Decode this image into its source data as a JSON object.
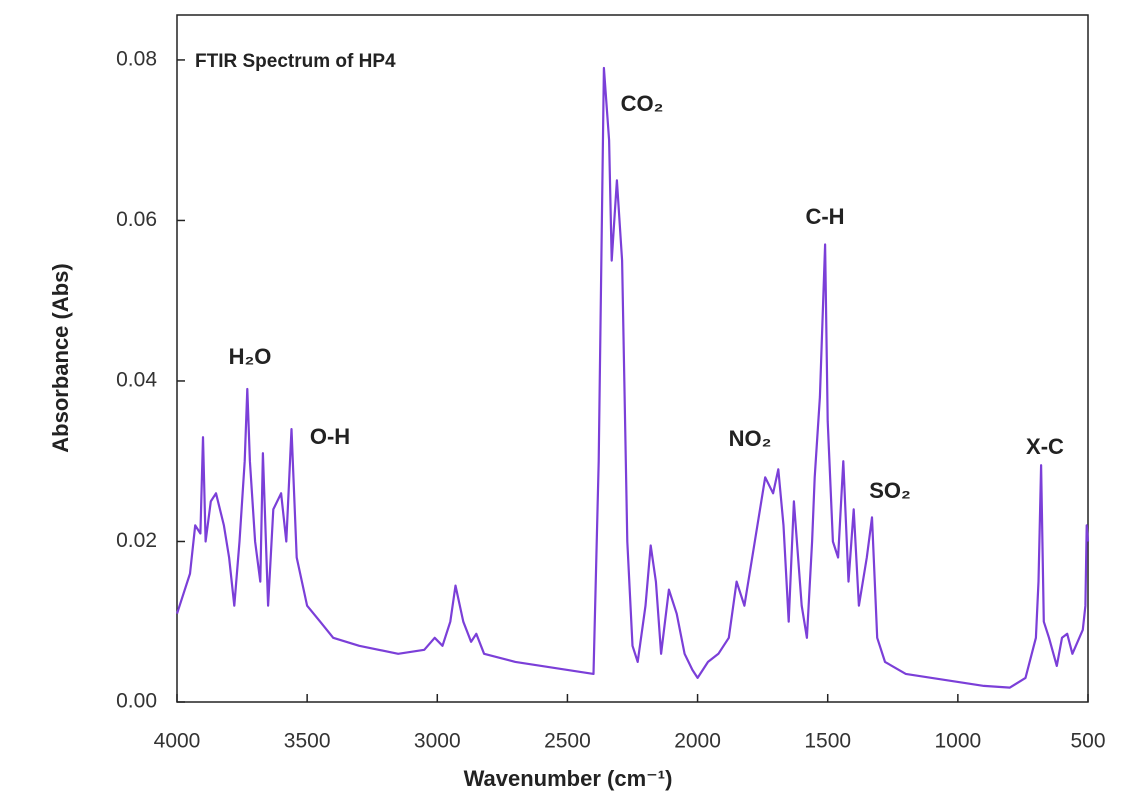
{
  "chart_data": {
    "type": "line",
    "title": "FTIR Spectrum of HP4",
    "x_label": "Wavenumber (cm⁻¹)",
    "y_label": "Absorbance (Abs)",
    "annotations": [
      "H₂O",
      "O-H",
      "CO₂",
      "C-H",
      "NO₂",
      "SO₂",
      "X-C"
    ],
    "xlim": [
      4000,
      500
    ],
    "ylim": [
      0,
      0.0856
    ],
    "xticks": [
      4000,
      3500,
      3000,
      2500,
      2000,
      1500,
      1000,
      500
    ],
    "yticks": [
      {
        "value": 0,
        "label": "0.00"
      },
      {
        "value": 0.02,
        "label": "0.02"
      },
      {
        "value": 0.04,
        "label": "0.04"
      },
      {
        "value": 0.06,
        "label": "0.06"
      },
      {
        "value": 0.08,
        "label": "0.08"
      }
    ],
    "x": [
      4000,
      3980,
      3950,
      3930,
      3910,
      3900,
      3890,
      3870,
      3850,
      3820,
      3800,
      3780,
      3760,
      3740,
      3730,
      3720,
      3700,
      3680,
      3670,
      3650,
      3630,
      3600,
      3580,
      3560,
      3540,
      3500,
      3450,
      3400,
      3300,
      3150,
      3050,
      3010,
      2980,
      2950,
      2930,
      2900,
      2870,
      2850,
      2820,
      2700,
      2500,
      2400,
      2380,
      2360,
      2340,
      2330,
      2310,
      2290,
      2270,
      2250,
      2230,
      2200,
      2180,
      2160,
      2140,
      2110,
      2080,
      2050,
      2020,
      2000,
      1960,
      1920,
      1880,
      1850,
      1820,
      1780,
      1740,
      1710,
      1690,
      1670,
      1650,
      1630,
      1600,
      1580,
      1560,
      1550,
      1530,
      1510,
      1500,
      1480,
      1460,
      1440,
      1420,
      1400,
      1380,
      1350,
      1330,
      1310,
      1280,
      1200,
      1100,
      1000,
      900,
      800,
      740,
      700,
      690,
      680,
      670,
      650,
      620,
      600,
      580,
      560,
      540,
      520,
      510,
      505,
      500
    ],
    "series": [
      {
        "color": "#7b3fd8",
        "values": [
          0.011,
          0.013,
          0.016,
          0.022,
          0.021,
          0.033,
          0.02,
          0.025,
          0.026,
          0.022,
          0.018,
          0.012,
          0.02,
          0.03,
          0.039,
          0.03,
          0.02,
          0.015,
          0.031,
          0.012,
          0.024,
          0.026,
          0.02,
          0.034,
          0.018,
          0.012,
          0.01,
          0.008,
          0.007,
          0.006,
          0.0065,
          0.008,
          0.007,
          0.01,
          0.0145,
          0.01,
          0.0075,
          0.0085,
          0.006,
          0.005,
          0.004,
          0.0035,
          0.03,
          0.079,
          0.07,
          0.055,
          0.065,
          0.055,
          0.02,
          0.007,
          0.005,
          0.012,
          0.0195,
          0.015,
          0.006,
          0.014,
          0.011,
          0.006,
          0.004,
          0.003,
          0.005,
          0.006,
          0.008,
          0.015,
          0.012,
          0.02,
          0.028,
          0.026,
          0.029,
          0.022,
          0.01,
          0.025,
          0.012,
          0.008,
          0.02,
          0.028,
          0.038,
          0.057,
          0.035,
          0.02,
          0.018,
          0.03,
          0.015,
          0.024,
          0.012,
          0.018,
          0.023,
          0.008,
          0.005,
          0.0035,
          0.003,
          0.0025,
          0.002,
          0.0018,
          0.003,
          0.008,
          0.015,
          0.0295,
          0.01,
          0.008,
          0.0045,
          0.008,
          0.0085,
          0.006,
          0.0075,
          0.009,
          0.012,
          0.022,
          0.02
        ]
      }
    ]
  }
}
